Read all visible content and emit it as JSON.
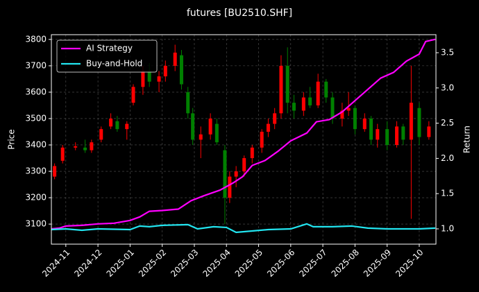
{
  "chart_data": {
    "type": "candlestick",
    "title": "futures [BU2510.SHF]",
    "ylabel": "Price",
    "y2label": "Return",
    "grid": true,
    "legend": "upper left",
    "up_color": "#ff0000",
    "down_color": "#008000",
    "xlim": [
      -0.45,
      11.52
    ],
    "xticks": [
      {
        "value": 0,
        "label": "2024-11"
      },
      {
        "value": 1,
        "label": "2024-12"
      },
      {
        "value": 2,
        "label": "2025-01"
      },
      {
        "value": 3,
        "label": "2025-02"
      },
      {
        "value": 4,
        "label": "2025-03"
      },
      {
        "value": 5,
        "label": "2025-04"
      },
      {
        "value": 6,
        "label": "2025-05"
      },
      {
        "value": 7,
        "label": "2025-06"
      },
      {
        "value": 8,
        "label": "2025-07"
      },
      {
        "value": 9,
        "label": "2025-08"
      },
      {
        "value": 10,
        "label": "2025-09"
      },
      {
        "value": 11,
        "label": "2025-10"
      }
    ],
    "ylim": [
      3024,
      3818
    ],
    "yticks": [
      3100,
      3200,
      3300,
      3400,
      3500,
      3600,
      3700,
      3800
    ],
    "y2lim": [
      0.783,
      3.756
    ],
    "y2ticks": [
      {
        "value": 1,
        "label": "1.0"
      },
      1.5,
      {
        "value": 2,
        "label": "2.0"
      },
      2.5,
      {
        "value": 3,
        "label": "3.0"
      },
      3.5
    ],
    "x": [
      -0.35,
      -0.1,
      0.3,
      0.6,
      0.8,
      1.1,
      1.4,
      1.6,
      1.9,
      2.1,
      2.4,
      2.6,
      2.9,
      3.1,
      3.4,
      3.6,
      3.8,
      3.95,
      4.2,
      4.5,
      4.7,
      4.95,
      5.1,
      5.3,
      5.55,
      5.8,
      6.1,
      6.3,
      6.5,
      6.7,
      6.9,
      7.1,
      7.4,
      7.6,
      7.85,
      8.1,
      8.3,
      8.6,
      8.8,
      9.0,
      9.3,
      9.5,
      9.7,
      10.0,
      10.3,
      10.5,
      10.75,
      11.0,
      11.3
    ],
    "open": [
      3280,
      3340,
      3390,
      3390,
      3380,
      3420,
      3470,
      3490,
      3460,
      3560,
      3620,
      3680,
      3640,
      3660,
      3700,
      3740,
      3600,
      3520,
      3420,
      3440,
      3480,
      3380,
      3200,
      3280,
      3300,
      3350,
      3390,
      3450,
      3480,
      3520,
      3700,
      3560,
      3530,
      3580,
      3550,
      3640,
      3580,
      3500,
      3530,
      3540,
      3460,
      3500,
      3420,
      3460,
      3400,
      3470,
      3420,
      3540,
      3430
    ],
    "high": [
      3330,
      3400,
      3410,
      3420,
      3420,
      3470,
      3520,
      3510,
      3490,
      3630,
      3700,
      3710,
      3680,
      3720,
      3780,
      3760,
      3620,
      3540,
      3470,
      3520,
      3500,
      3400,
      3300,
      3320,
      3360,
      3400,
      3460,
      3500,
      3540,
      3740,
      3770,
      3590,
      3600,
      3620,
      3670,
      3650,
      3600,
      3560,
      3600,
      3550,
      3520,
      3510,
      3480,
      3490,
      3490,
      3480,
      3700,
      3560,
      3490
    ],
    "low": [
      3270,
      3330,
      3380,
      3370,
      3370,
      3410,
      3460,
      3450,
      3420,
      3550,
      3590,
      3620,
      3600,
      3640,
      3680,
      3610,
      3500,
      3400,
      3350,
      3420,
      3400,
      3100,
      3180,
      3240,
      3280,
      3330,
      3370,
      3430,
      3460,
      3500,
      3520,
      3500,
      3510,
      3540,
      3540,
      3560,
      3480,
      3470,
      3510,
      3440,
      3450,
      3400,
      3390,
      3380,
      3390,
      3400,
      3120,
      3400,
      3420
    ],
    "close": [
      3320,
      3390,
      3395,
      3380,
      3410,
      3460,
      3500,
      3460,
      3480,
      3620,
      3680,
      3640,
      3660,
      3700,
      3750,
      3630,
      3520,
      3420,
      3440,
      3500,
      3410,
      3200,
      3280,
      3300,
      3350,
      3390,
      3450,
      3480,
      3520,
      3700,
      3560,
      3530,
      3580,
      3550,
      3640,
      3580,
      3500,
      3530,
      3540,
      3460,
      3500,
      3420,
      3460,
      3400,
      3470,
      3420,
      3560,
      3430,
      3470
    ],
    "series": [
      {
        "name": "AI Strategy",
        "color": "#ff00ff",
        "axis": "y2",
        "x": [
          -0.45,
          -0.2,
          0,
          0.5,
          1.0,
          1.5,
          2.0,
          2.3,
          2.6,
          3.0,
          3.5,
          3.9,
          4.3,
          4.8,
          5.2,
          5.5,
          5.8,
          6.2,
          6.6,
          7.0,
          7.5,
          7.8,
          8.2,
          8.6,
          9.0,
          9.4,
          9.8,
          10.2,
          10.6,
          11.0,
          11.2,
          11.5
        ],
        "values": [
          1.0,
          1.01,
          1.04,
          1.05,
          1.07,
          1.08,
          1.12,
          1.17,
          1.25,
          1.26,
          1.28,
          1.4,
          1.47,
          1.55,
          1.65,
          1.74,
          1.9,
          1.97,
          2.1,
          2.25,
          2.36,
          2.52,
          2.55,
          2.66,
          2.82,
          2.98,
          3.14,
          3.22,
          3.38,
          3.48,
          3.66,
          3.69
        ]
      },
      {
        "name": "Buy-and-Hold",
        "color": "#22e5f0",
        "axis": "y2",
        "x": [
          -0.45,
          0,
          0.5,
          1.0,
          2.0,
          2.3,
          2.6,
          3.0,
          3.8,
          4.1,
          4.6,
          5.0,
          5.3,
          5.8,
          6.3,
          7.0,
          7.5,
          7.7,
          8.3,
          8.9,
          9.4,
          10.0,
          10.5,
          11.0,
          11.5
        ],
        "values": [
          0.99,
          1.0,
          0.98,
          1.0,
          0.99,
          1.04,
          1.03,
          1.05,
          1.06,
          1.0,
          1.03,
          1.02,
          0.95,
          0.97,
          0.99,
          1.0,
          1.07,
          1.03,
          1.03,
          1.04,
          1.01,
          1.0,
          1.0,
          1.0,
          1.01
        ]
      }
    ]
  }
}
